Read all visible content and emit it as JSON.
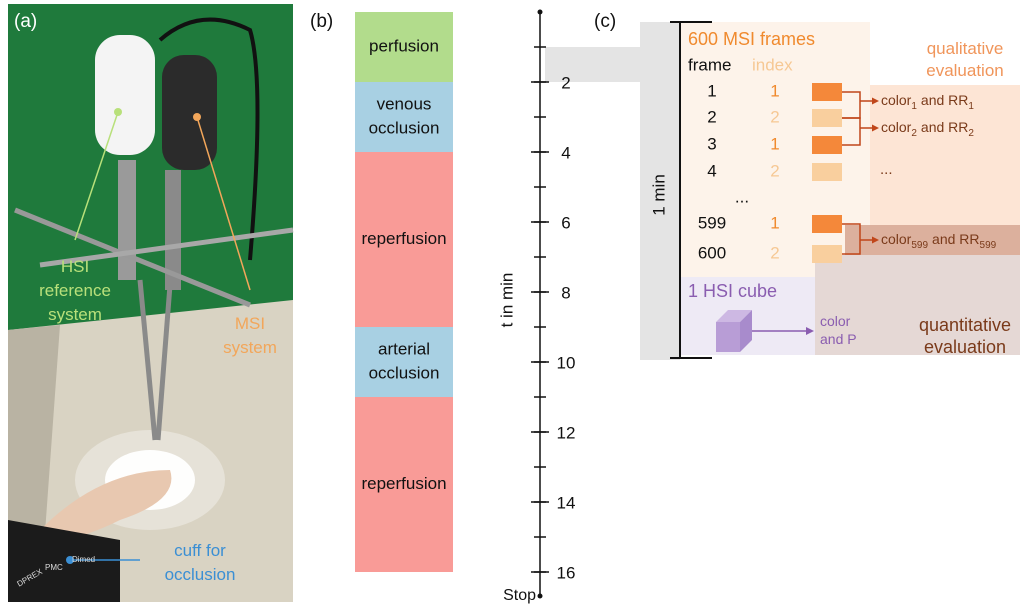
{
  "panel_a": {
    "label": "(a)",
    "hsi_note": [
      "HSI",
      "reference",
      "system"
    ],
    "msi_note": [
      "MSI",
      "system"
    ],
    "cuff_note": [
      "cuff for",
      "occlusion"
    ],
    "cuff_text": [
      "DPREX",
      "PMC",
      "Dimed"
    ]
  },
  "panel_b": {
    "label": "(b)",
    "axis_label": "t in min",
    "axis": {
      "min": 0,
      "max": 16,
      "ticks": [
        2,
        4,
        6,
        8,
        10,
        12,
        14,
        16
      ]
    },
    "end_label": "Stop",
    "highlight": {
      "start": 1,
      "end": 2
    },
    "phases": [
      {
        "lines": [
          "perfusion"
        ],
        "start": 0,
        "end": 2,
        "color": "#b2dc8c"
      },
      {
        "lines": [
          "venous",
          "occlusion"
        ],
        "start": 2,
        "end": 4,
        "color": "#a8d0e3"
      },
      {
        "lines": [
          "reperfusion"
        ],
        "start": 4,
        "end": 9,
        "color": "#f99b97"
      },
      {
        "lines": [
          "arterial",
          "occlusion"
        ],
        "start": 9,
        "end": 11,
        "color": "#a8d0e3"
      },
      {
        "lines": [
          "reperfusion"
        ],
        "start": 11,
        "end": 16,
        "color": "#f99b97"
      }
    ]
  },
  "panel_c": {
    "label": "(c)",
    "window_label": "1 min",
    "title": "600 MSI frames",
    "col_frame": "frame",
    "col_index": "index",
    "rows": [
      {
        "frame": 1,
        "index": 1
      },
      {
        "frame": 2,
        "index": 2
      },
      {
        "frame": 3,
        "index": 1
      },
      {
        "frame": 4,
        "index": 2
      },
      {
        "frame": 599,
        "index": 1
      },
      {
        "frame": 600,
        "index": 2
      }
    ],
    "ellipsis": "...",
    "qualitative": [
      "qualitative",
      "evaluation"
    ],
    "results": [
      {
        "parts": [
          "color",
          "1",
          "and RR",
          "1"
        ]
      },
      {
        "parts": [
          "color",
          "2",
          "and RR",
          "2"
        ]
      },
      {
        "parts": [
          "color",
          "599",
          "and RR",
          "599"
        ]
      }
    ],
    "results_ellipsis": "...",
    "hsi_title": "1 HSI cube",
    "hsi_result": [
      "color",
      "and P"
    ],
    "quantitative": [
      "quantitative",
      "evaluation"
    ]
  }
}
